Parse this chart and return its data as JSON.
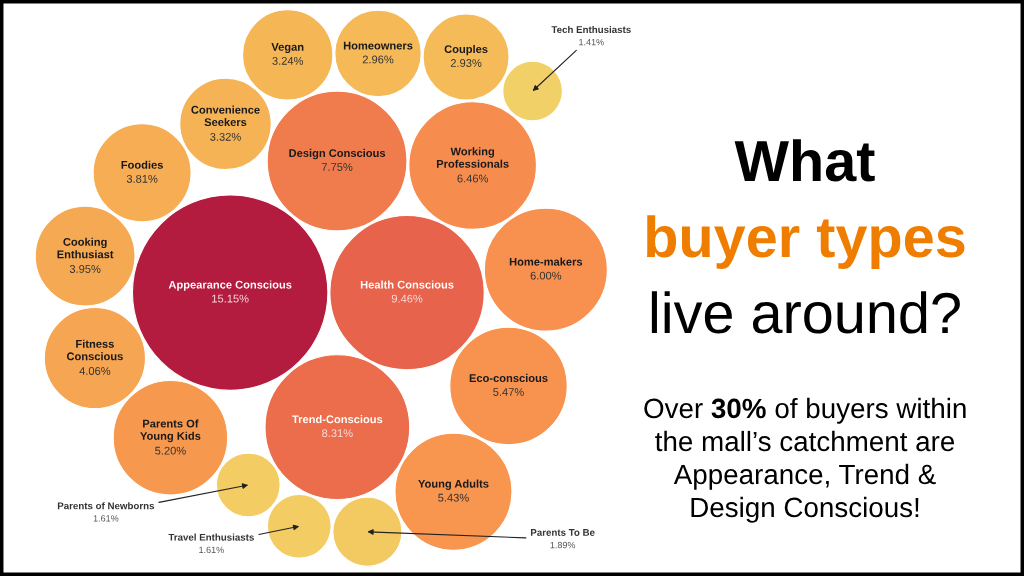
{
  "chart_data": {
    "type": "other",
    "title": "What\nbuyer types\nlive around?",
    "categories": [
      "Appearance Conscious",
      "Health Conscious",
      "Trend-Conscious",
      "Design Conscious",
      "Working Professionals",
      "Home-makers",
      "Eco-conscious",
      "Young Adults",
      "Parents To Be",
      "Travel Enthusiasts",
      "Parents of Newborns",
      "Parents Of Young Kids",
      "Fitness Conscious",
      "Cooking Enthusiast",
      "Foodies",
      "Convenience Seekers",
      "Vegan",
      "Homeowners",
      "Couples",
      "Tech Enthusiasts"
    ],
    "values": [
      15.15,
      9.46,
      8.31,
      7.75,
      6.46,
      6.0,
      5.47,
      5.43,
      1.89,
      1.61,
      1.61,
      5.2,
      4.06,
      3.95,
      3.81,
      3.32,
      3.24,
      2.96,
      2.93,
      1.41
    ],
    "value_labels": [
      "15.15%",
      "9.46%",
      "8.31%",
      "7.75%",
      "6.46%",
      "6.00%",
      "5.47%",
      "5.43%",
      "1.89%",
      "1.61%",
      "1.61%",
      "5.20%",
      "4.06%",
      "3.95%",
      "3.81%",
      "3.32%",
      "3.24%",
      "2.96%",
      "2.93%",
      "1.41%"
    ],
    "colors": [
      "#b31b3f",
      "#e8634b",
      "#eb6d4b",
      "#f07b4c",
      "#f68d4f",
      "#f8904f",
      "#f8934f",
      "#f8954f",
      "#f3c962",
      "#f3cc64",
      "#f3cc64",
      "#f7984f",
      "#f6a552",
      "#f6a953",
      "#f6ad54",
      "#f5b355",
      "#f5b656",
      "#f5b958",
      "#f5bb59",
      "#f2d068"
    ],
    "annotations": [
      "Over 30% of buyers within\nthe mall’s catchment are\nAppearance, Trend &\nDesign Conscious!"
    ]
  }
}
